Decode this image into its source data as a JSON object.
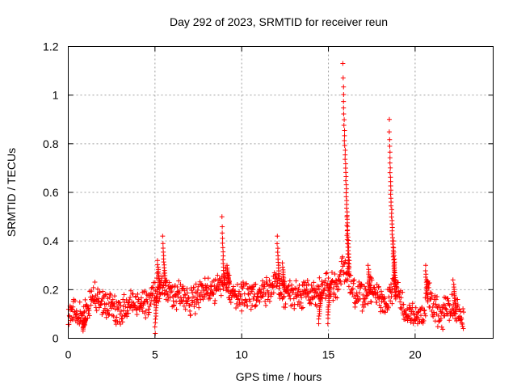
{
  "chart_data": {
    "type": "scatter",
    "title": "Day 292 of 2023, SRMTID for receiver reun",
    "xlabel": "GPS time / hours",
    "ylabel": "SRMTID / TECUs",
    "xlim": [
      0,
      24.5
    ],
    "ylim": [
      0,
      1.2
    ],
    "xticks": [
      0,
      5,
      10,
      15,
      20
    ],
    "xtick_labels": [
      "0",
      "5",
      "10",
      "15",
      "20"
    ],
    "yticks": [
      0,
      0.2,
      0.4,
      0.6,
      0.8,
      1,
      1.2
    ],
    "ytick_labels": [
      "0",
      "0.2",
      "0.4",
      "0.6",
      "0.8",
      "1",
      "1.2"
    ],
    "grid": true,
    "marker": "+",
    "color": "#ff0000",
    "series": [
      {
        "name": "SRMTID",
        "profile": [
          {
            "x": 0.0,
            "y": 0.1
          },
          {
            "x": 0.5,
            "y": 0.11
          },
          {
            "x": 0.8,
            "y": 0.07
          },
          {
            "x": 1.0,
            "y": 0.12
          },
          {
            "x": 1.5,
            "y": 0.17
          },
          {
            "x": 2.0,
            "y": 0.14
          },
          {
            "x": 2.5,
            "y": 0.12
          },
          {
            "x": 3.0,
            "y": 0.1
          },
          {
            "x": 3.5,
            "y": 0.14
          },
          {
            "x": 4.0,
            "y": 0.14
          },
          {
            "x": 4.5,
            "y": 0.15
          },
          {
            "x": 5.0,
            "y": 0.2
          },
          {
            "x": 5.5,
            "y": 0.22
          },
          {
            "x": 6.0,
            "y": 0.16
          },
          {
            "x": 6.5,
            "y": 0.18
          },
          {
            "x": 7.0,
            "y": 0.15
          },
          {
            "x": 7.5,
            "y": 0.17
          },
          {
            "x": 8.0,
            "y": 0.2
          },
          {
            "x": 8.5,
            "y": 0.19
          },
          {
            "x": 9.0,
            "y": 0.24
          },
          {
            "x": 9.5,
            "y": 0.18
          },
          {
            "x": 10.0,
            "y": 0.17
          },
          {
            "x": 10.5,
            "y": 0.17
          },
          {
            "x": 11.0,
            "y": 0.19
          },
          {
            "x": 11.5,
            "y": 0.2
          },
          {
            "x": 12.0,
            "y": 0.22
          },
          {
            "x": 12.5,
            "y": 0.18
          },
          {
            "x": 13.0,
            "y": 0.18
          },
          {
            "x": 13.5,
            "y": 0.18
          },
          {
            "x": 14.0,
            "y": 0.18
          },
          {
            "x": 14.5,
            "y": 0.19
          },
          {
            "x": 15.0,
            "y": 0.21
          },
          {
            "x": 15.5,
            "y": 0.2
          },
          {
            "x": 15.8,
            "y": 0.3
          },
          {
            "x": 16.2,
            "y": 0.24
          },
          {
            "x": 16.5,
            "y": 0.18
          },
          {
            "x": 17.0,
            "y": 0.17
          },
          {
            "x": 17.5,
            "y": 0.2
          },
          {
            "x": 18.0,
            "y": 0.16
          },
          {
            "x": 18.3,
            "y": 0.15
          },
          {
            "x": 18.8,
            "y": 0.22
          },
          {
            "x": 19.2,
            "y": 0.15
          },
          {
            "x": 19.5,
            "y": 0.12
          },
          {
            "x": 20.0,
            "y": 0.09
          },
          {
            "x": 20.5,
            "y": 0.08
          },
          {
            "x": 20.7,
            "y": 0.22
          },
          {
            "x": 21.0,
            "y": 0.12
          },
          {
            "x": 21.5,
            "y": 0.1
          },
          {
            "x": 22.0,
            "y": 0.12
          },
          {
            "x": 22.5,
            "y": 0.12
          },
          {
            "x": 22.8,
            "y": 0.06
          }
        ],
        "spikes": [
          {
            "x": 0.85,
            "y": 0.03
          },
          {
            "x": 5.15,
            "y": 0.32
          },
          {
            "x": 5.45,
            "y": 0.42
          },
          {
            "x": 8.85,
            "y": 0.5
          },
          {
            "x": 9.15,
            "y": 0.3
          },
          {
            "x": 12.05,
            "y": 0.42
          },
          {
            "x": 12.35,
            "y": 0.31
          },
          {
            "x": 14.45,
            "y": 0.06
          },
          {
            "x": 14.95,
            "y": 0.06
          },
          {
            "x": 15.85,
            "y": 1.13
          },
          {
            "x": 16.05,
            "y": 0.5
          },
          {
            "x": 17.3,
            "y": 0.3
          },
          {
            "x": 18.5,
            "y": 0.9
          },
          {
            "x": 18.75,
            "y": 0.4
          },
          {
            "x": 20.6,
            "y": 0.3
          },
          {
            "x": 22.2,
            "y": 0.24
          },
          {
            "x": 5.0,
            "y": 0.02
          }
        ]
      }
    ]
  }
}
